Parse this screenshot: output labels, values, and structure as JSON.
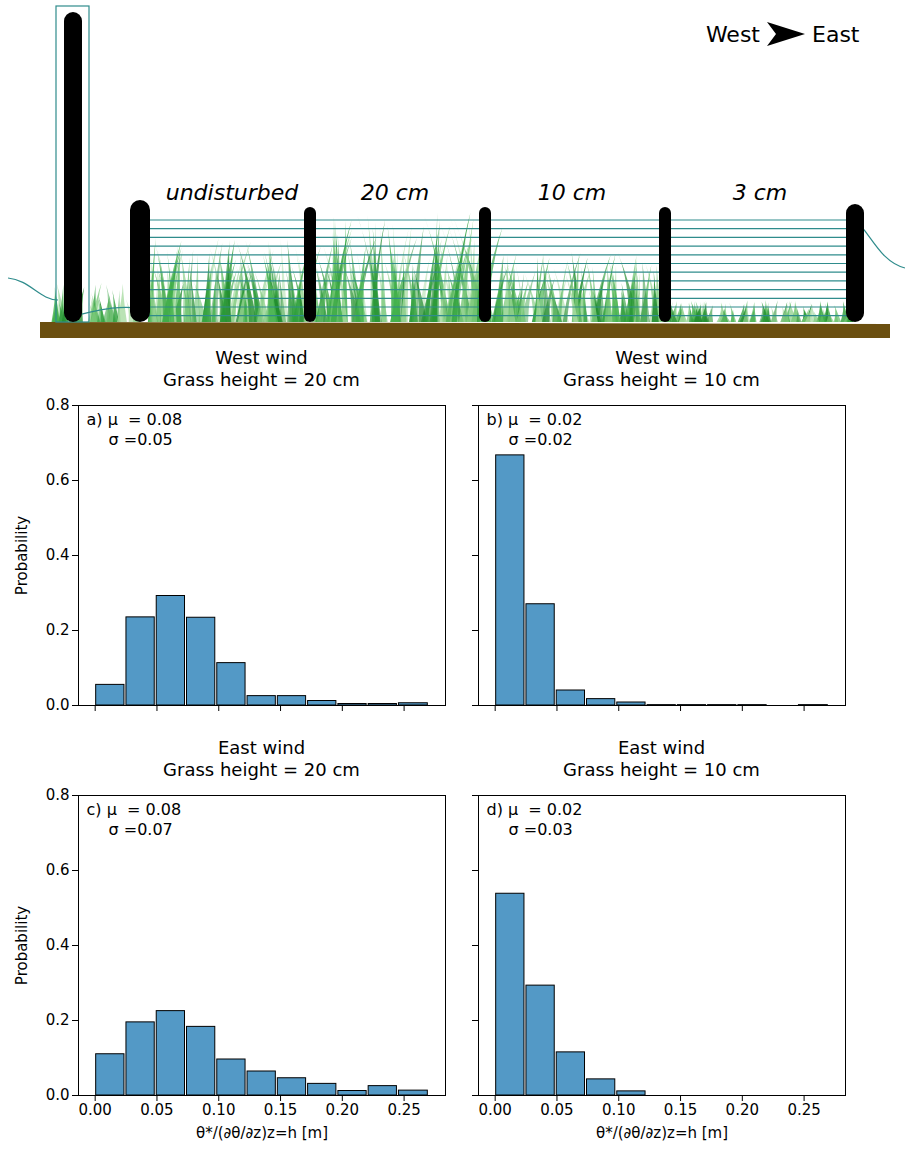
{
  "diagram": {
    "direction": {
      "from": "West",
      "to": "East"
    },
    "sections": [
      "undisturbed",
      "20 cm",
      "10 cm",
      "3 cm"
    ]
  },
  "chart_data": [
    {
      "type": "histogram",
      "title": "West wind",
      "subtitle": "Grass height = 20 cm",
      "annotations": [
        "a) μ  = 0.08",
        "σ =0.05"
      ],
      "bins": [
        0,
        0.0245,
        0.049,
        0.0735,
        0.098,
        0.1225,
        0.147,
        0.1715,
        0.196,
        0.2205,
        0.245,
        0.27
      ],
      "values": [
        0.055,
        0.235,
        0.292,
        0.234,
        0.113,
        0.025,
        0.025,
        0.012,
        0.004,
        0.004,
        0.006
      ],
      "color": "#5399c6",
      "ylabel": "Probability",
      "xlim": [
        -0.0135,
        0.2835
      ],
      "ylim": [
        0,
        0.8
      ],
      "xticks": [
        {
          "value": 0,
          "label": "0.00"
        },
        {
          "value": 0.05,
          "label": "0.05"
        },
        {
          "value": 0.1,
          "label": "0.10"
        },
        {
          "value": 0.15,
          "label": "0.15"
        },
        {
          "value": 0.2,
          "label": "0.20"
        },
        {
          "value": 0.25,
          "label": "0.25"
        }
      ],
      "yticks": [
        {
          "value": 0,
          "label": "0.0"
        },
        {
          "value": 0.2,
          "label": "0.2"
        },
        {
          "value": 0.4,
          "label": "0.4"
        },
        {
          "value": 0.6,
          "label": "0.6"
        },
        {
          "value": 0.8,
          "label": "0.8"
        }
      ],
      "tick_labels": "y"
    },
    {
      "type": "histogram",
      "title": "West wind",
      "subtitle": "Grass height = 10 cm",
      "annotations": [
        "b) μ  = 0.02",
        "σ =0.02"
      ],
      "bins": [
        0,
        0.0245,
        0.049,
        0.0735,
        0.098,
        0.1225,
        0.147,
        0.1715,
        0.196,
        0.2205,
        0.245,
        0.27
      ],
      "values": [
        0.667,
        0.27,
        0.04,
        0.017,
        0.008,
        0.001,
        0.001,
        0.001,
        0.001,
        0,
        0.001
      ],
      "color": "#5399c6",
      "xlim": [
        -0.0135,
        0.2835
      ],
      "ylim": [
        0,
        0.8
      ],
      "xticks": [
        {
          "value": 0,
          "label": "0.00"
        },
        {
          "value": 0.05,
          "label": "0.05"
        },
        {
          "value": 0.1,
          "label": "0.10"
        },
        {
          "value": 0.15,
          "label": "0.15"
        },
        {
          "value": 0.2,
          "label": "0.20"
        },
        {
          "value": 0.25,
          "label": "0.25"
        }
      ],
      "yticks": [
        {
          "value": 0,
          "label": "0.0"
        },
        {
          "value": 0.2,
          "label": "0.2"
        },
        {
          "value": 0.4,
          "label": "0.4"
        },
        {
          "value": 0.6,
          "label": "0.6"
        },
        {
          "value": 0.8,
          "label": "0.8"
        }
      ],
      "tick_labels": false
    },
    {
      "type": "histogram",
      "title": "East wind",
      "subtitle": "Grass height = 20 cm",
      "annotations": [
        "c) μ  = 0.08",
        "σ =0.07"
      ],
      "bins": [
        0,
        0.0245,
        0.049,
        0.0735,
        0.098,
        0.1225,
        0.147,
        0.1715,
        0.196,
        0.2205,
        0.245,
        0.27
      ],
      "values": [
        0.11,
        0.195,
        0.225,
        0.183,
        0.096,
        0.064,
        0.046,
        0.031,
        0.012,
        0.025,
        0.013
      ],
      "color": "#5399c6",
      "ylabel": "Probability",
      "xlabel": "θ*/(∂θ/∂z)z=h [m]",
      "xlim": [
        -0.0135,
        0.2835
      ],
      "ylim": [
        0,
        0.8
      ],
      "xticks": [
        {
          "value": 0,
          "label": "0.00"
        },
        {
          "value": 0.05,
          "label": "0.05"
        },
        {
          "value": 0.1,
          "label": "0.10"
        },
        {
          "value": 0.15,
          "label": "0.15"
        },
        {
          "value": 0.2,
          "label": "0.20"
        },
        {
          "value": 0.25,
          "label": "0.25"
        }
      ],
      "yticks": [
        {
          "value": 0,
          "label": "0.0"
        },
        {
          "value": 0.2,
          "label": "0.2"
        },
        {
          "value": 0.4,
          "label": "0.4"
        },
        {
          "value": 0.6,
          "label": "0.6"
        },
        {
          "value": 0.8,
          "label": "0.8"
        }
      ],
      "tick_labels": true
    },
    {
      "type": "histogram",
      "title": "East wind",
      "subtitle": "Grass height = 10 cm",
      "annotations": [
        "d) μ  = 0.02",
        "σ =0.03"
      ],
      "bins": [
        0,
        0.0245,
        0.049,
        0.0735,
        0.098,
        0.1225,
        0.147,
        0.1715,
        0.196,
        0.2205,
        0.245,
        0.27
      ],
      "values": [
        0.538,
        0.293,
        0.115,
        0.043,
        0.011,
        0,
        0,
        0,
        0,
        0,
        0
      ],
      "color": "#5399c6",
      "xlabel": "θ*/(∂θ/∂z)z=h [m]",
      "xlim": [
        -0.0135,
        0.2835
      ],
      "ylim": [
        0,
        0.8
      ],
      "xticks": [
        {
          "value": 0,
          "label": "0.00"
        },
        {
          "value": 0.05,
          "label": "0.05"
        },
        {
          "value": 0.1,
          "label": "0.10"
        },
        {
          "value": 0.15,
          "label": "0.15"
        },
        {
          "value": 0.2,
          "label": "0.20"
        },
        {
          "value": 0.25,
          "label": "0.25"
        }
      ],
      "yticks": [
        {
          "value": 0,
          "label": "0.0"
        },
        {
          "value": 0.2,
          "label": "0.2"
        },
        {
          "value": 0.4,
          "label": "0.4"
        },
        {
          "value": 0.6,
          "label": "0.6"
        },
        {
          "value": 0.8,
          "label": "0.8"
        }
      ],
      "tick_labels": "x"
    }
  ]
}
